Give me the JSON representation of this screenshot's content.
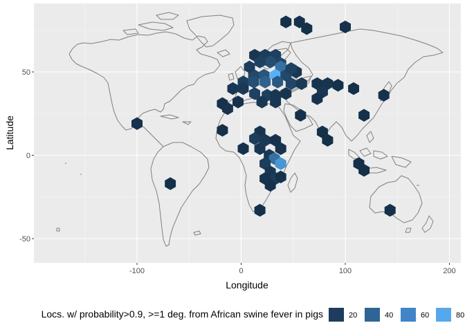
{
  "chart_data": {
    "type": "heatmap",
    "subtype": "hexbin-on-world-map",
    "xlabel": "Longitude",
    "ylabel": "Latitude",
    "xlim": [
      -198,
      208
    ],
    "ylim": [
      -65,
      88
    ],
    "x_ticks": [
      -100,
      0,
      100,
      200
    ],
    "y_ticks": [
      -50,
      0,
      50
    ],
    "x_tick_labels": [
      "-100",
      "0",
      "100",
      "200"
    ],
    "y_tick_labels": [
      "-50",
      "0",
      "50"
    ],
    "grid": true,
    "panel_background": "#ebebeb",
    "legend": {
      "position": "bottom",
      "title": "Locs. w/ probability>0.9, >=1 deg. from African swine fever in pigs",
      "breaks": [
        20,
        40,
        60,
        80
      ],
      "labels": [
        "20",
        "40",
        "60",
        "80"
      ],
      "colors": [
        "#1e3d5e",
        "#2e6595",
        "#4085c8",
        "#56a8ec"
      ]
    },
    "color_scale": {
      "low": "#132b43",
      "high": "#56b1f7",
      "min": 1,
      "max": 85
    },
    "hex_bins": [
      {
        "lon": 43,
        "lat": 80,
        "count": 4
      },
      {
        "lon": 56,
        "lat": 80,
        "count": 5
      },
      {
        "lon": 63,
        "lat": 76,
        "count": 4
      },
      {
        "lon": 100,
        "lat": 77,
        "count": 5
      },
      {
        "lon": 13,
        "lat": 60,
        "count": 8
      },
      {
        "lon": 23,
        "lat": 60,
        "count": 12
      },
      {
        "lon": 33,
        "lat": 60,
        "count": 14
      },
      {
        "lon": 38,
        "lat": 55,
        "count": 18
      },
      {
        "lon": 28,
        "lat": 56,
        "count": 22
      },
      {
        "lon": 18,
        "lat": 56,
        "count": 15
      },
      {
        "lon": 38,
        "lat": 53,
        "count": 45
      },
      {
        "lon": 33,
        "lat": 48,
        "count": 85
      },
      {
        "lon": 22,
        "lat": 48,
        "count": 28
      },
      {
        "lon": 12,
        "lat": 48,
        "count": 20
      },
      {
        "lon": 43,
        "lat": 48,
        "count": 20
      },
      {
        "lon": 53,
        "lat": 50,
        "count": 8
      },
      {
        "lon": 8,
        "lat": 53,
        "count": 12
      },
      {
        "lon": 48,
        "lat": 52,
        "count": 15
      },
      {
        "lon": 2,
        "lat": 44,
        "count": 14
      },
      {
        "lon": 12,
        "lat": 44,
        "count": 24
      },
      {
        "lon": 23,
        "lat": 44,
        "count": 36
      },
      {
        "lon": 35,
        "lat": 44,
        "count": 30
      },
      {
        "lon": 48,
        "lat": 43,
        "count": 18
      },
      {
        "lon": 58,
        "lat": 43,
        "count": 10
      },
      {
        "lon": -8,
        "lat": 40,
        "count": 8
      },
      {
        "lon": 2,
        "lat": 40,
        "count": 10
      },
      {
        "lon": 13,
        "lat": 37,
        "count": 15
      },
      {
        "lon": 25,
        "lat": 36,
        "count": 14
      },
      {
        "lon": 33,
        "lat": 36,
        "count": 8
      },
      {
        "lon": 43,
        "lat": 37,
        "count": 7
      },
      {
        "lon": 20,
        "lat": 32,
        "count": 9
      },
      {
        "lon": 33,
        "lat": 32,
        "count": 8
      },
      {
        "lon": -3,
        "lat": 32,
        "count": 5
      },
      {
        "lon": -18,
        "lat": 31,
        "count": 5
      },
      {
        "lon": -13,
        "lat": 28,
        "count": 6
      },
      {
        "lon": 73,
        "lat": 43,
        "count": 6
      },
      {
        "lon": 83,
        "lat": 43,
        "count": 7
      },
      {
        "lon": 93,
        "lat": 42,
        "count": 5
      },
      {
        "lon": 78,
        "lat": 38,
        "count": 8
      },
      {
        "lon": 73,
        "lat": 34,
        "count": 5
      },
      {
        "lon": 108,
        "lat": 40,
        "count": 4
      },
      {
        "lon": 137,
        "lat": 36,
        "count": 5
      },
      {
        "lon": 57,
        "lat": 24,
        "count": 4
      },
      {
        "lon": 118,
        "lat": 24,
        "count": 4
      },
      {
        "lon": -100,
        "lat": 19,
        "count": 5
      },
      {
        "lon": -18,
        "lat": 15,
        "count": 4
      },
      {
        "lon": 18,
        "lat": 14,
        "count": 6
      },
      {
        "lon": 13,
        "lat": 10,
        "count": 12
      },
      {
        "lon": 23,
        "lat": 9,
        "count": 10
      },
      {
        "lon": 33,
        "lat": 9,
        "count": 5
      },
      {
        "lon": 2,
        "lat": 4,
        "count": 5
      },
      {
        "lon": 18,
        "lat": 4,
        "count": 8
      },
      {
        "lon": 78,
        "lat": 14,
        "count": 4
      },
      {
        "lon": 83,
        "lat": 9,
        "count": 4
      },
      {
        "lon": 38,
        "lat": 4,
        "count": 6
      },
      {
        "lon": 27,
        "lat": 0,
        "count": 10
      },
      {
        "lon": 32,
        "lat": -2,
        "count": 45
      },
      {
        "lon": 23,
        "lat": -5,
        "count": 12
      },
      {
        "lon": 38,
        "lat": -5,
        "count": 68
      },
      {
        "lon": 28,
        "lat": -10,
        "count": 8
      },
      {
        "lon": 23,
        "lat": -14,
        "count": 6
      },
      {
        "lon": 33,
        "lat": -14,
        "count": 12
      },
      {
        "lon": 28,
        "lat": -18,
        "count": 5
      },
      {
        "lon": 38,
        "lat": -13,
        "count": 5
      },
      {
        "lon": 113,
        "lat": -5,
        "count": 4
      },
      {
        "lon": 118,
        "lat": -9,
        "count": 4
      },
      {
        "lon": -68,
        "lat": -17,
        "count": 4
      },
      {
        "lon": 18,
        "lat": -33,
        "count": 4
      },
      {
        "lon": 143,
        "lat": -33,
        "count": 4
      }
    ]
  }
}
